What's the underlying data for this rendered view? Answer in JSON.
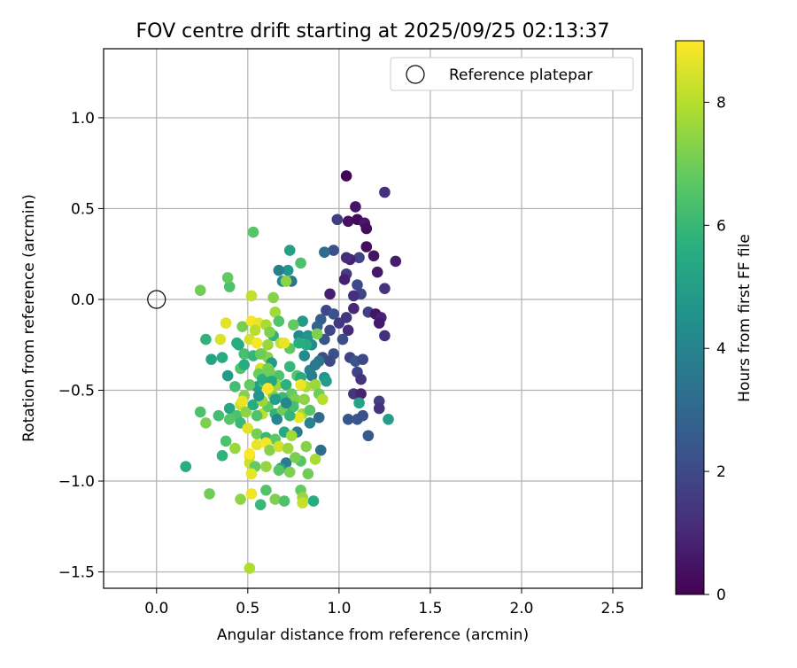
{
  "chart_data": {
    "type": "scatter",
    "title": "FOV centre drift starting at 2025/09/25 02:13:37",
    "xlabel": "Angular distance from reference (arcmin)",
    "ylabel": "Rotation from reference (arcmin)",
    "xlim": [
      -0.29,
      2.66
    ],
    "ylim": [
      -1.59,
      1.38
    ],
    "x_ticks": [
      0.0,
      0.5,
      1.0,
      1.5,
      2.0,
      2.5
    ],
    "x_tick_labels": [
      "0.0",
      "0.5",
      "1.0",
      "1.5",
      "2.0",
      "2.5"
    ],
    "y_ticks": [
      1.0,
      0.5,
      0.0,
      -0.5,
      -1.0,
      -1.5
    ],
    "y_tick_labels": [
      "1.0",
      "0.5",
      "0.0",
      "−0.5",
      "−1.0",
      "−1.5"
    ],
    "grid": true,
    "legend": {
      "position": "top-right",
      "label": "Reference platepar",
      "marker": "open-circle"
    },
    "reference_point": {
      "x": 0.0,
      "y": 0.0
    },
    "colorbar": {
      "label": "Hours from first FF file",
      "min": 0,
      "max": 9,
      "ticks": [
        0,
        2,
        4,
        6,
        8
      ],
      "tick_labels": [
        "0",
        "2",
        "4",
        "6",
        "8"
      ],
      "colormap": "viridis"
    },
    "points": [
      [
        1.04,
        0.68,
        0.1
      ],
      [
        1.25,
        0.59,
        1.2
      ],
      [
        1.09,
        0.51,
        0.5
      ],
      [
        0.99,
        0.44,
        1.6
      ],
      [
        1.05,
        0.43,
        0.4
      ],
      [
        1.1,
        0.44,
        0.2
      ],
      [
        1.14,
        0.42,
        0.6
      ],
      [
        1.15,
        0.39,
        0.3
      ],
      [
        1.15,
        0.29,
        0.3
      ],
      [
        1.19,
        0.24,
        0.5
      ],
      [
        1.11,
        0.23,
        1.8
      ],
      [
        1.06,
        0.22,
        0.9
      ],
      [
        1.04,
        0.23,
        1.1
      ],
      [
        1.31,
        0.21,
        0.7
      ],
      [
        0.97,
        0.27,
        2.2
      ],
      [
        0.92,
        0.26,
        3.2
      ],
      [
        1.21,
        0.15,
        0.6
      ],
      [
        1.04,
        0.14,
        1.6
      ],
      [
        1.03,
        0.11,
        0.8
      ],
      [
        1.25,
        0.06,
        1.3
      ],
      [
        1.12,
        0.03,
        1.9
      ],
      [
        1.08,
        0.02,
        1.2
      ],
      [
        0.95,
        0.03,
        0.8
      ],
      [
        1.1,
        0.08,
        2.0
      ],
      [
        0.93,
        -0.06,
        1.9
      ],
      [
        0.97,
        -0.08,
        2.3
      ],
      [
        1.04,
        -0.1,
        1.4
      ],
      [
        1.08,
        -0.05,
        1.0
      ],
      [
        1.16,
        -0.07,
        1.7
      ],
      [
        1.2,
        -0.08,
        0.5
      ],
      [
        1.23,
        -0.1,
        0.9
      ],
      [
        1.22,
        -0.13,
        0.6
      ],
      [
        0.9,
        -0.11,
        2.6
      ],
      [
        1.0,
        -0.13,
        1.5
      ],
      [
        0.95,
        -0.17,
        1.9
      ],
      [
        0.88,
        -0.15,
        2.9
      ],
      [
        1.05,
        -0.17,
        1.1
      ],
      [
        0.92,
        -0.22,
        2.4
      ],
      [
        1.02,
        -0.22,
        2.1
      ],
      [
        1.25,
        -0.2,
        1.2
      ],
      [
        0.97,
        -0.3,
        2.2
      ],
      [
        0.91,
        -0.32,
        2.1
      ],
      [
        0.95,
        -0.34,
        2.0
      ],
      [
        1.06,
        -0.32,
        1.8
      ],
      [
        1.09,
        -0.34,
        2.4
      ],
      [
        1.13,
        -0.33,
        2.0
      ],
      [
        1.1,
        -0.4,
        1.8
      ],
      [
        1.12,
        -0.44,
        1.3
      ],
      [
        1.08,
        -0.52,
        1.4
      ],
      [
        1.12,
        -0.52,
        0.9
      ],
      [
        1.05,
        -0.66,
        2.4
      ],
      [
        1.1,
        -0.66,
        2.4
      ],
      [
        1.13,
        -0.64,
        2.2
      ],
      [
        1.16,
        -0.75,
        2.5
      ],
      [
        1.22,
        -0.56,
        1.7
      ],
      [
        1.22,
        -0.6,
        1.3
      ],
      [
        1.27,
        -0.66,
        5.0
      ],
      [
        1.11,
        -0.57,
        5.2
      ],
      [
        0.92,
        -0.43,
        4.6
      ],
      [
        0.89,
        -0.65,
        3.1
      ],
      [
        0.89,
        -0.34,
        3.5
      ],
      [
        0.84,
        -0.39,
        4.0
      ],
      [
        0.87,
        -0.36,
        3.6
      ],
      [
        0.85,
        -0.42,
        3.8
      ],
      [
        0.9,
        -0.83,
        3.2
      ],
      [
        0.93,
        -0.45,
        5.0
      ],
      [
        0.8,
        -0.12,
        4.8
      ],
      [
        0.78,
        -0.2,
        4.2
      ],
      [
        0.83,
        -0.2,
        4.6
      ],
      [
        0.85,
        -0.25,
        4.4
      ],
      [
        0.82,
        -0.25,
        5.5
      ],
      [
        0.81,
        -0.31,
        4.3
      ],
      [
        0.84,
        -0.68,
        4.0
      ],
      [
        0.77,
        -0.73,
        3.8
      ],
      [
        0.79,
        -0.89,
        6.6
      ],
      [
        0.71,
        -0.9,
        3.7
      ],
      [
        0.68,
        -0.93,
        4.9
      ],
      [
        0.72,
        -0.6,
        3.5
      ],
      [
        0.73,
        0.27,
        5.1
      ],
      [
        0.72,
        0.16,
        4.7
      ],
      [
        0.67,
        0.16,
        3.8
      ],
      [
        0.69,
        0.1,
        4.2
      ],
      [
        0.74,
        0.1,
        3.5
      ],
      [
        0.79,
        0.2,
        6.4
      ],
      [
        0.71,
        0.1,
        7.4
      ],
      [
        0.53,
        0.37,
        6.6
      ],
      [
        0.24,
        0.05,
        7.0
      ],
      [
        0.4,
        0.07,
        6.4
      ],
      [
        0.39,
        0.12,
        6.8
      ],
      [
        0.52,
        0.02,
        8.2
      ],
      [
        0.64,
        0.01,
        7.3
      ],
      [
        0.65,
        -0.07,
        7.7
      ],
      [
        0.67,
        -0.12,
        6.5
      ],
      [
        0.75,
        -0.14,
        6.8
      ],
      [
        0.64,
        -0.2,
        5.8
      ],
      [
        0.68,
        -0.24,
        8.2
      ],
      [
        0.73,
        -0.27,
        6.7
      ],
      [
        0.78,
        -0.24,
        5.6
      ],
      [
        0.88,
        -0.19,
        7.2
      ],
      [
        0.27,
        -0.22,
        5.8
      ],
      [
        0.38,
        -0.13,
        8.6
      ],
      [
        0.47,
        -0.15,
        7.1
      ],
      [
        0.52,
        -0.12,
        8.9
      ],
      [
        0.56,
        -0.13,
        8.7
      ],
      [
        0.6,
        -0.14,
        7.8
      ],
      [
        0.54,
        -0.17,
        8.0
      ],
      [
        0.51,
        -0.22,
        8.4
      ],
      [
        0.45,
        -0.25,
        5.3
      ],
      [
        0.48,
        -0.3,
        6.3
      ],
      [
        0.58,
        -0.3,
        7.6
      ],
      [
        0.53,
        -0.31,
        5.9
      ],
      [
        0.61,
        -0.32,
        7.3
      ],
      [
        0.36,
        -0.32,
        5.5
      ],
      [
        0.3,
        -0.33,
        5.2
      ],
      [
        0.39,
        -0.42,
        4.9
      ],
      [
        0.46,
        -0.38,
        6.5
      ],
      [
        0.57,
        -0.38,
        8.4
      ],
      [
        0.63,
        -0.35,
        4.9
      ],
      [
        0.67,
        -0.42,
        6.4
      ],
      [
        0.73,
        -0.37,
        5.9
      ],
      [
        0.77,
        -0.42,
        6.6
      ],
      [
        0.79,
        -0.43,
        5.5
      ],
      [
        0.82,
        -0.48,
        7.8
      ],
      [
        0.87,
        -0.47,
        7.6
      ],
      [
        0.89,
        -0.52,
        7.0
      ],
      [
        0.91,
        -0.55,
        8.0
      ],
      [
        0.43,
        -0.48,
        6.2
      ],
      [
        0.48,
        -0.53,
        7.3
      ],
      [
        0.55,
        -0.48,
        5.0
      ],
      [
        0.59,
        -0.46,
        6.6
      ],
      [
        0.62,
        -0.5,
        8.5
      ],
      [
        0.66,
        -0.47,
        7.6
      ],
      [
        0.71,
        -0.47,
        5.7
      ],
      [
        0.74,
        -0.52,
        6.8
      ],
      [
        0.76,
        -0.55,
        7.2
      ],
      [
        0.81,
        -0.55,
        7.4
      ],
      [
        0.79,
        -0.47,
        8.8
      ],
      [
        0.4,
        -0.6,
        5.3
      ],
      [
        0.46,
        -0.58,
        8.3
      ],
      [
        0.44,
        -0.64,
        6.4
      ],
      [
        0.49,
        -0.62,
        7.4
      ],
      [
        0.53,
        -0.58,
        5.6
      ],
      [
        0.58,
        -0.63,
        8.1
      ],
      [
        0.61,
        -0.59,
        6.7
      ],
      [
        0.65,
        -0.63,
        5.8
      ],
      [
        0.69,
        -0.61,
        7.0
      ],
      [
        0.75,
        -0.59,
        6.3
      ],
      [
        0.8,
        -0.63,
        7.7
      ],
      [
        0.84,
        -0.61,
        6.6
      ],
      [
        0.24,
        -0.62,
        6.4
      ],
      [
        0.27,
        -0.68,
        7.2
      ],
      [
        0.34,
        -0.64,
        6.2
      ],
      [
        0.4,
        -0.66,
        6.6
      ],
      [
        0.46,
        -0.68,
        6.0
      ],
      [
        0.5,
        -0.71,
        8.6
      ],
      [
        0.55,
        -0.74,
        7.1
      ],
      [
        0.6,
        -0.76,
        6.0
      ],
      [
        0.65,
        -0.77,
        6.7
      ],
      [
        0.7,
        -0.73,
        5.4
      ],
      [
        0.74,
        -0.75,
        7.7
      ],
      [
        0.78,
        -0.65,
        8.7
      ],
      [
        0.38,
        -0.78,
        6.4
      ],
      [
        0.36,
        -0.86,
        5.8
      ],
      [
        0.43,
        -0.82,
        7.6
      ],
      [
        0.51,
        -0.86,
        8.0
      ],
      [
        0.55,
        -0.8,
        8.7
      ],
      [
        0.6,
        -0.79,
        8.9
      ],
      [
        0.62,
        -0.83,
        7.3
      ],
      [
        0.67,
        -0.81,
        8.4
      ],
      [
        0.72,
        -0.82,
        7.6
      ],
      [
        0.76,
        -0.87,
        7.1
      ],
      [
        0.82,
        -0.81,
        7.3
      ],
      [
        0.87,
        -0.88,
        7.8
      ],
      [
        0.51,
        -0.9,
        8.3
      ],
      [
        0.54,
        -0.92,
        6.8
      ],
      [
        0.6,
        -0.92,
        7.5
      ],
      [
        0.67,
        -0.94,
        6.6
      ],
      [
        0.73,
        -0.95,
        7.2
      ],
      [
        0.83,
        -0.96,
        7.0
      ],
      [
        0.16,
        -0.92,
        5.6
      ],
      [
        0.29,
        -1.07,
        7.0
      ],
      [
        0.46,
        -1.1,
        7.4
      ],
      [
        0.52,
        -1.07,
        8.8
      ],
      [
        0.6,
        -1.05,
        6.5
      ],
      [
        0.57,
        -1.13,
        6.0
      ],
      [
        0.65,
        -1.1,
        7.2
      ],
      [
        0.7,
        -1.11,
        6.4
      ],
      [
        0.79,
        -1.05,
        6.8
      ],
      [
        0.8,
        -1.09,
        7.6
      ],
      [
        0.8,
        -1.12,
        8.2
      ],
      [
        0.86,
        -1.11,
        5.5
      ],
      [
        0.51,
        -1.48,
        7.9
      ],
      [
        0.52,
        -0.96,
        8.7
      ],
      [
        0.51,
        -0.85,
        9.0
      ],
      [
        0.47,
        -0.56,
        8.7
      ],
      [
        0.58,
        -0.56,
        7.6
      ],
      [
        0.55,
        -0.64,
        6.5
      ],
      [
        0.61,
        -0.38,
        7.1
      ],
      [
        0.57,
        -0.3,
        6.9
      ],
      [
        0.55,
        -0.24,
        8.9
      ],
      [
        0.61,
        -0.25,
        7.6
      ],
      [
        0.62,
        -0.18,
        7.2
      ],
      [
        0.7,
        -0.24,
        8.7
      ],
      [
        0.35,
        -0.22,
        8.5
      ],
      [
        0.44,
        -0.24,
        5.6
      ],
      [
        0.48,
        -0.36,
        5.5
      ],
      [
        0.56,
        -0.41,
        6.9
      ],
      [
        0.58,
        -0.44,
        5.6
      ],
      [
        0.62,
        -0.4,
        7.0
      ],
      [
        0.64,
        -0.53,
        7.2
      ],
      [
        0.63,
        -0.45,
        5.3
      ],
      [
        0.69,
        -0.54,
        6.0
      ],
      [
        0.56,
        -0.53,
        4.7
      ],
      [
        0.51,
        -0.47,
        6.8
      ],
      [
        0.61,
        -0.49,
        9.0
      ],
      [
        0.65,
        -0.55,
        5.0
      ],
      [
        0.71,
        -0.57,
        4.2
      ],
      [
        0.66,
        -0.66,
        4.1
      ],
      [
        0.73,
        -0.64,
        5.9
      ]
    ]
  }
}
